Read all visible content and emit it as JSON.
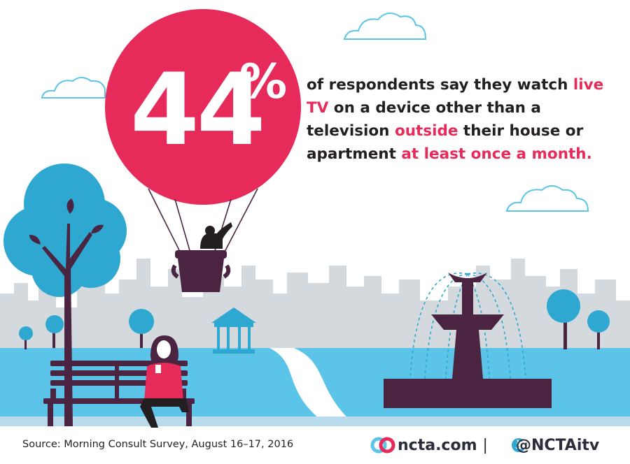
{
  "stat": {
    "number": "44",
    "percent": "%"
  },
  "headline": {
    "p1": "of respondents say they watch ",
    "h1": "live TV",
    "p2": " on a device other than a television ",
    "h2": "outside",
    "p3": " their house or apartment ",
    "h3": "at least once a month."
  },
  "footer": {
    "source": "Source: Morning Consult Survey, August 16–17, 2016",
    "site": "ncta.com",
    "separator": "|",
    "handle": "@NCTAitv"
  },
  "colors": {
    "accent": "#e62b5a",
    "sky_blue": "#5bc4e8",
    "tree_blue": "#2ea8d0",
    "purple": "#4a2440",
    "skyline": "#d4d9dd",
    "text": "#231f20"
  },
  "icons": [
    "ncta-logo-icon",
    "twitter-bird-icon"
  ]
}
